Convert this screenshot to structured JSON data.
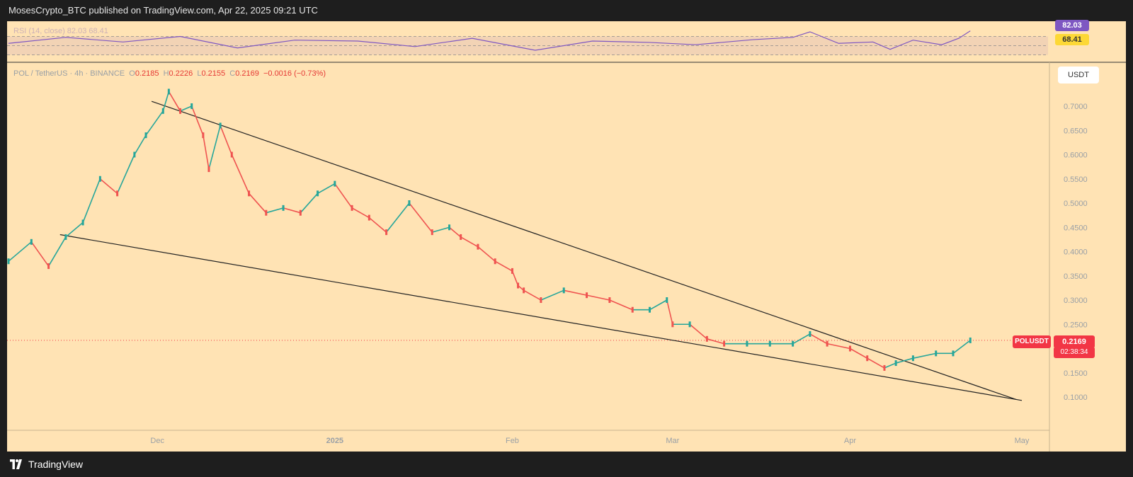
{
  "header": {
    "publisher": "MosesCrypto_BTC published on TradingView.com, Apr 22, 2025 09:21 UTC"
  },
  "footer": {
    "brand": "TradingView"
  },
  "colors": {
    "up": "#26a69a",
    "down": "#ef5350",
    "rsi": "#7e57c2",
    "background": "#ffe3b4",
    "price_tag": "#f23645"
  },
  "rsi_panel": {
    "legend": "RSI (14, close) 82.03 68.41",
    "value": "82.03",
    "ma_value": "68.41"
  },
  "legend": {
    "symbol": "POL / TetherUS · 4h · BINANCE",
    "o_label": "O",
    "o_value": "0.2185",
    "h_label": "H",
    "h_value": "0.2226",
    "l_label": "L",
    "l_value": "0.2155",
    "c_label": "C",
    "c_value": "0.2169",
    "change": "−0.0016 (−0.73%)"
  },
  "price_scale": {
    "unit": "USDT"
  },
  "price_tag": {
    "symbol": "POLUSDT",
    "value": "0.2169",
    "countdown": "02:38:34"
  },
  "chart_data": {
    "type": "line",
    "title": "POL / TetherUS · 4h · BINANCE",
    "xlabel": "",
    "ylabel": "",
    "y_ticks": [
      "0.7000",
      "0.6500",
      "0.6000",
      "0.5500",
      "0.5000",
      "0.4500",
      "0.4000",
      "0.3500",
      "0.3000",
      "0.2500",
      "0.2000",
      "0.1500",
      "0.1000"
    ],
    "x_ticks": [
      "Dec",
      "2025",
      "Feb",
      "Mar",
      "Apr",
      "May"
    ],
    "x_tick_dates": [
      "2024-12-01",
      "2025-01-01",
      "2025-02-01",
      "2025-03-01",
      "2025-04-01",
      "2025-05-01"
    ],
    "x_range": [
      "2024-11-05",
      "2025-05-01"
    ],
    "ylim": [
      0.1,
      0.7
    ],
    "last_price": 0.2169,
    "series": [
      {
        "name": "POLUSDT",
        "x": [
          "2024-11-05",
          "2024-11-09",
          "2024-11-12",
          "2024-11-15",
          "2024-11-18",
          "2024-11-21",
          "2024-11-24",
          "2024-11-27",
          "2024-11-29",
          "2024-12-02",
          "2024-12-03",
          "2024-12-05",
          "2024-12-07",
          "2024-12-09",
          "2024-12-10",
          "2024-12-12",
          "2024-12-14",
          "2024-12-17",
          "2024-12-20",
          "2024-12-23",
          "2024-12-26",
          "2024-12-29",
          "2025-01-01",
          "2025-01-04",
          "2025-01-07",
          "2025-01-10",
          "2025-01-14",
          "2025-01-18",
          "2025-01-21",
          "2025-01-23",
          "2025-01-26",
          "2025-01-29",
          "2025-02-01",
          "2025-02-02",
          "2025-02-03",
          "2025-02-06",
          "2025-02-10",
          "2025-02-14",
          "2025-02-18",
          "2025-02-22",
          "2025-02-25",
          "2025-02-28",
          "2025-03-01",
          "2025-03-04",
          "2025-03-07",
          "2025-03-10",
          "2025-03-14",
          "2025-03-18",
          "2025-03-22",
          "2025-03-25",
          "2025-03-28",
          "2025-04-01",
          "2025-04-04",
          "2025-04-07",
          "2025-04-09",
          "2025-04-12",
          "2025-04-16",
          "2025-04-19",
          "2025-04-22"
        ],
        "y": [
          0.38,
          0.42,
          0.37,
          0.43,
          0.46,
          0.55,
          0.52,
          0.6,
          0.64,
          0.69,
          0.73,
          0.69,
          0.7,
          0.64,
          0.57,
          0.66,
          0.6,
          0.52,
          0.48,
          0.49,
          0.48,
          0.52,
          0.54,
          0.49,
          0.47,
          0.44,
          0.5,
          0.44,
          0.45,
          0.43,
          0.41,
          0.38,
          0.36,
          0.33,
          0.32,
          0.3,
          0.32,
          0.31,
          0.3,
          0.28,
          0.28,
          0.3,
          0.25,
          0.25,
          0.22,
          0.21,
          0.21,
          0.21,
          0.21,
          0.23,
          0.21,
          0.2,
          0.18,
          0.16,
          0.17,
          0.18,
          0.19,
          0.19,
          0.2169
        ]
      },
      {
        "name": "RSI (14, close)",
        "x": [
          "2024-11-05",
          "2024-11-15",
          "2024-11-25",
          "2024-12-05",
          "2024-12-15",
          "2024-12-25",
          "2025-01-05",
          "2025-01-15",
          "2025-01-25",
          "2025-02-05",
          "2025-02-15",
          "2025-02-25",
          "2025-03-05",
          "2025-03-15",
          "2025-03-22",
          "2025-03-25",
          "2025-03-30",
          "2025-04-05",
          "2025-04-08",
          "2025-04-12",
          "2025-04-17",
          "2025-04-20",
          "2025-04-22"
        ],
        "y": [
          55,
          68,
          58,
          70,
          45,
          62,
          60,
          48,
          66,
          40,
          60,
          57,
          52,
          63,
          68,
          80,
          55,
          58,
          42,
          62,
          52,
          66,
          82.03
        ]
      }
    ],
    "trendlines": [
      {
        "name": "upper",
        "from": [
          "2024-11-30",
          0.71
        ],
        "to": [
          "2025-04-30",
          0.095
        ]
      },
      {
        "name": "lower",
        "from": [
          "2024-11-14",
          0.435
        ],
        "to": [
          "2025-05-01",
          0.093
        ]
      }
    ],
    "rsi_levels": [
      70,
      50,
      30
    ],
    "rsi_ylim": [
      20,
      100
    ]
  }
}
